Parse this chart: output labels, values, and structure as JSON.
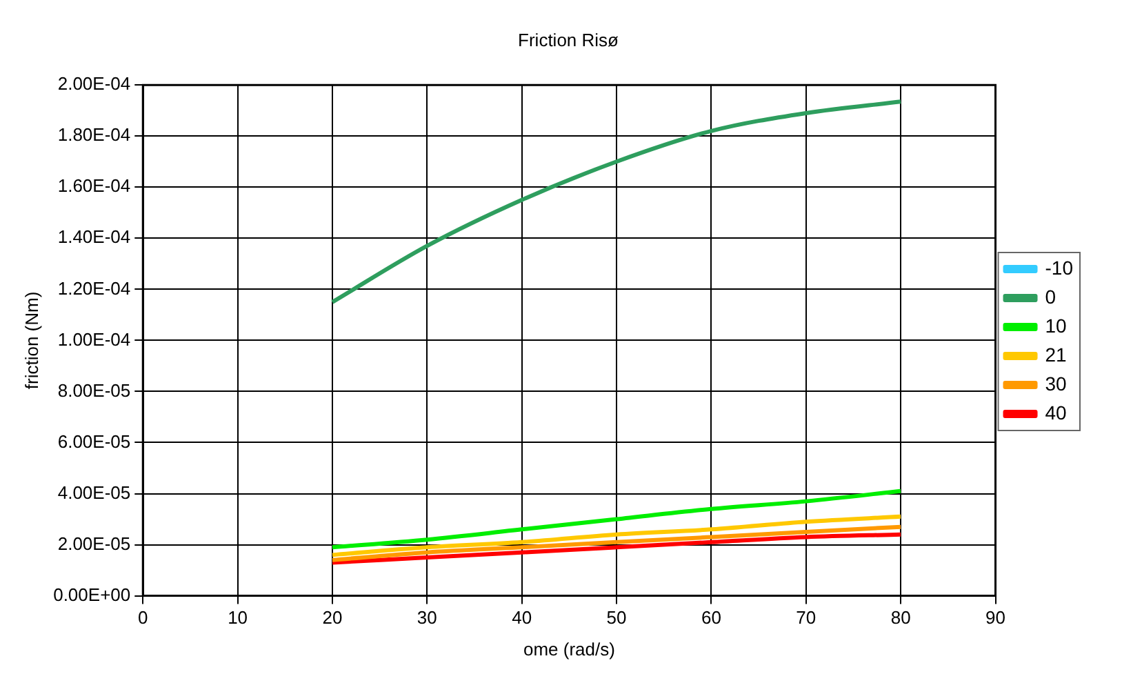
{
  "chart_data": {
    "type": "line",
    "title": "Friction Risø",
    "xlabel": "ome (rad/s)",
    "ylabel": "friction (Nm)",
    "x": [
      20,
      30,
      40,
      50,
      60,
      70,
      80
    ],
    "series": [
      {
        "name": "-10",
        "color": "#33ccff",
        "values": [
          null,
          null,
          null,
          null,
          null,
          null,
          null
        ]
      },
      {
        "name": "0",
        "color": "#2e9e5e",
        "values": [
          0.000115,
          0.000137,
          0.000155,
          0.00017,
          0.000182,
          0.000189,
          0.0001935
        ]
      },
      {
        "name": "10",
        "color": "#00ee00",
        "values": [
          1.9e-05,
          2.2e-05,
          2.6e-05,
          3e-05,
          3.4e-05,
          3.7e-05,
          4.1e-05
        ]
      },
      {
        "name": "21",
        "color": "#ffc800",
        "values": [
          1.6e-05,
          1.9e-05,
          2.1e-05,
          2.4e-05,
          2.6e-05,
          2.9e-05,
          3.1e-05
        ]
      },
      {
        "name": "30",
        "color": "#ff9900",
        "values": [
          1.4e-05,
          1.7e-05,
          1.9e-05,
          2.1e-05,
          2.3e-05,
          2.5e-05,
          2.7e-05
        ]
      },
      {
        "name": "40",
        "color": "#ff0000",
        "values": [
          1.3e-05,
          1.5e-05,
          1.7e-05,
          1.9e-05,
          2.1e-05,
          2.3e-05,
          2.4e-05
        ]
      }
    ],
    "xlim": [
      0,
      90
    ],
    "xticks": [
      0,
      10,
      20,
      30,
      40,
      50,
      60,
      70,
      80,
      90
    ],
    "ylim": [
      0,
      0.0002
    ],
    "yticks": [
      {
        "value": 0,
        "label": "0.00E+00"
      },
      {
        "value": 2e-05,
        "label": "2.00E-05"
      },
      {
        "value": 4e-05,
        "label": "4.00E-05"
      },
      {
        "value": 6e-05,
        "label": "6.00E-05"
      },
      {
        "value": 8e-05,
        "label": "8.00E-05"
      },
      {
        "value": 0.0001,
        "label": "1.00E-04"
      },
      {
        "value": 0.00012,
        "label": "1.20E-04"
      },
      {
        "value": 0.00014,
        "label": "1.40E-04"
      },
      {
        "value": 0.00016,
        "label": "1.60E-04"
      },
      {
        "value": 0.00018,
        "label": "1.80E-04"
      },
      {
        "value": 0.0002,
        "label": "2.00E-04"
      }
    ],
    "grid": true,
    "legend": "right",
    "marker": "none",
    "line_style": "solid"
  }
}
